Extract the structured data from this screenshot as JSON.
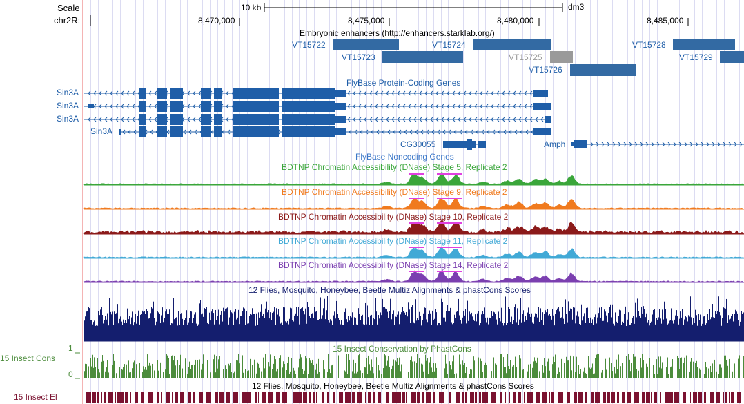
{
  "browser": {
    "scale_label": "Scale",
    "scale_value": "10 kb",
    "assembly": "dm3",
    "chrom_label": "chr2R:",
    "positions": [
      "8,470,000",
      "8,475,000",
      "8,480,000",
      "8,485,000"
    ]
  },
  "tracks": {
    "enhancers": {
      "title": "Embryonic enhancers (http://enhancers.starklab.org/)",
      "items": [
        "VT15722",
        "VT15723",
        "VT15724",
        "VT15725",
        "VT15726",
        "VT15728",
        "VT15729"
      ]
    },
    "genes": {
      "title": "FlyBase Protein-Coding Genes",
      "isoforms": [
        "Sin3A",
        "Sin3A",
        "Sin3A",
        "Sin3A"
      ],
      "other": [
        "CG30055",
        "Amph"
      ]
    },
    "noncoding": {
      "title": "FlyBase Noncoding Genes"
    },
    "dnase": [
      {
        "title": "BDTNP Chromatin Accessibility (DNase) Stage 5, Replicate 2",
        "color": "#3aa63a"
      },
      {
        "title": "BDTNP Chromatin Accessibility (DNase) Stage 9, Replicate 2",
        "color": "#f07a1e"
      },
      {
        "title": "BDTNP Chromatin Accessibility (DNase) Stage 10, Replicate 2",
        "color": "#8b1a1a"
      },
      {
        "title": "BDTNP Chromatin Accessibility (DNase) Stage 11, Replicate 2",
        "color": "#41a9d6"
      },
      {
        "title": "BDTNP Chromatin Accessibility (DNase) Stage 14, Replicate 2",
        "color": "#7b3fb0"
      }
    ],
    "multiz": {
      "title": "12 Flies, Mosquito, Honeybee, Beetle Multiz Alignments & phastCons Scores",
      "color": "#141e6e"
    },
    "phastcons": {
      "title": "15 Insect Conservation by PhastCons",
      "side_label": "15 Insect Cons",
      "y_top": "1",
      "y_bottom": "0",
      "color": "#4c8c3c"
    },
    "elements": {
      "title": "12 Flies, Mosquito, Honeybee, Beetle Multiz Alignments & phastCons Scores",
      "side_label": "15 Insect El",
      "color": "#7a1230"
    }
  }
}
